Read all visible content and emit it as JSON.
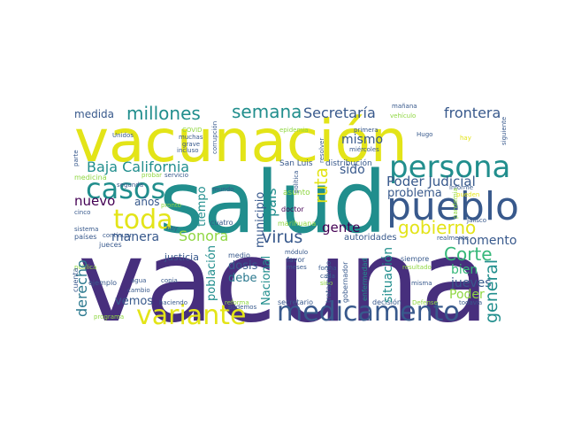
{
  "colors": {
    "navy": "#472f7d",
    "teal": "#218e8d",
    "blue": "#38598c",
    "green": "#35b779",
    "yellow": "#e3e418",
    "lime": "#90d743",
    "sea": "#2a788e",
    "dark": "#440154"
  },
  "words": [
    {
      "text": "vacuna",
      "color": "navy"
    },
    {
      "text": "vacunación",
      "color": "yellow"
    },
    {
      "text": "salud",
      "color": "teal"
    },
    {
      "text": "persona",
      "color": "teal"
    },
    {
      "text": "pueblo",
      "color": "blue"
    },
    {
      "text": "medicamento",
      "color": "blue"
    },
    {
      "text": "variante",
      "color": "yellow"
    },
    {
      "text": "casos",
      "color": "teal"
    },
    {
      "text": "toda",
      "color": "yellow"
    },
    {
      "text": "millones",
      "color": "teal"
    },
    {
      "text": "semana",
      "color": "teal"
    },
    {
      "text": "Secretaría",
      "color": "blue"
    },
    {
      "text": "frontera",
      "color": "blue"
    },
    {
      "text": "medida",
      "color": "blue"
    },
    {
      "text": "Baja California",
      "color": "teal"
    },
    {
      "text": "gobierno",
      "color": "yellow"
    },
    {
      "text": "Corte",
      "color": "green"
    },
    {
      "text": "Poder Judicial",
      "color": "blue"
    },
    {
      "text": "virus",
      "color": "blue"
    },
    {
      "text": "Sonora",
      "color": "lime"
    },
    {
      "text": "nuevo",
      "color": "dark"
    },
    {
      "text": "años",
      "color": "blue"
    },
    {
      "text": "manera",
      "color": "blue"
    },
    {
      "text": "derecho",
      "color": "sea"
    },
    {
      "text": "gente",
      "color": "dark"
    },
    {
      "text": "general",
      "color": "teal"
    },
    {
      "text": "mismo",
      "color": "blue"
    },
    {
      "text": "sido",
      "color": "blue"
    },
    {
      "text": "problema",
      "color": "blue"
    },
    {
      "text": "momento",
      "color": "blue"
    },
    {
      "text": "jueves",
      "color": "blue"
    },
    {
      "text": "bien",
      "color": "green"
    },
    {
      "text": "Poder",
      "color": "lime"
    },
    {
      "text": "dosis",
      "color": "blue"
    },
    {
      "text": "debe",
      "color": "sea"
    },
    {
      "text": "vemos",
      "color": "blue"
    },
    {
      "text": "ruta",
      "color": "yellow"
    },
    {
      "text": "país",
      "color": "teal"
    },
    {
      "text": "municipio",
      "color": "blue"
    },
    {
      "text": "tiempo",
      "color": "teal"
    },
    {
      "text": "población",
      "color": "teal"
    },
    {
      "text": "Nacional",
      "color": "teal"
    },
    {
      "text": "situación",
      "color": "teal"
    },
    {
      "text": "justicia",
      "color": "blue"
    },
    {
      "text": "autoridades",
      "color": "blue"
    },
    {
      "text": "enfermedad",
      "color": "teal"
    },
    {
      "text": "distribución",
      "color": "blue"
    },
    {
      "text": "San Luis",
      "color": "blue"
    },
    {
      "text": "asunto",
      "color": "lime"
    },
    {
      "text": "marihuana",
      "color": "lime"
    },
    {
      "text": "doctor",
      "color": "dark"
    },
    {
      "text": "cuatro",
      "color": "blue"
    },
    {
      "text": "medio",
      "color": "blue"
    },
    {
      "text": "favor",
      "color": "blue"
    },
    {
      "text": "meses",
      "color": "blue"
    },
    {
      "text": "módulo",
      "color": "blue"
    },
    {
      "text": "forma",
      "color": "blue"
    },
    {
      "text": "cada",
      "color": "blue"
    },
    {
      "text": "secretario",
      "color": "blue"
    },
    {
      "text": "decisión",
      "color": "blue"
    },
    {
      "text": "misma",
      "color": "blue"
    },
    {
      "text": "todavía",
      "color": "blue"
    },
    {
      "text": "siempre",
      "color": "blue"
    },
    {
      "text": "realmente",
      "color": "blue"
    },
    {
      "text": "resultado",
      "color": "lime"
    },
    {
      "text": "Defense",
      "color": "lime"
    },
    {
      "text": "tratamiento",
      "color": "blue"
    },
    {
      "text": "gobernador",
      "color": "blue"
    },
    {
      "text": "mundo",
      "color": "blue"
    },
    {
      "text": "pronto",
      "color": "lime"
    },
    {
      "text": "servicio",
      "color": "blue"
    },
    {
      "text": "probar",
      "color": "lime"
    },
    {
      "text": "medicina",
      "color": "lime"
    },
    {
      "text": "cinco",
      "color": "blue"
    },
    {
      "text": "sistema",
      "color": "blue"
    },
    {
      "text": "países",
      "color": "blue"
    },
    {
      "text": "cuenta",
      "color": "blue"
    },
    {
      "text": "ejemplo",
      "color": "blue"
    },
    {
      "text": "jueces",
      "color": "blue"
    },
    {
      "text": "segunda",
      "color": "blue"
    },
    {
      "text": "continuar",
      "color": "blue"
    },
    {
      "text": "hoy",
      "color": "blue"
    },
    {
      "text": "pública",
      "color": "lime"
    },
    {
      "text": "agua",
      "color": "blue"
    },
    {
      "text": "copia",
      "color": "blue"
    },
    {
      "text": "cambio",
      "color": "blue"
    },
    {
      "text": "haciendo",
      "color": "blue"
    },
    {
      "text": "programa",
      "color": "lime"
    },
    {
      "text": "sino",
      "color": "lime"
    },
    {
      "text": "podemos",
      "color": "blue"
    },
    {
      "text": "reforma",
      "color": "lime"
    },
    {
      "text": "política",
      "color": "blue"
    },
    {
      "text": "Unidos",
      "color": "blue"
    },
    {
      "text": "COVID",
      "color": "lime"
    },
    {
      "text": "muchas",
      "color": "blue"
    },
    {
      "text": "grave",
      "color": "blue"
    },
    {
      "text": "incluso",
      "color": "blue"
    },
    {
      "text": "corrupción",
      "color": "blue"
    },
    {
      "text": "epidemia",
      "color": "lime"
    },
    {
      "text": "resolver",
      "color": "blue"
    },
    {
      "text": "primera",
      "color": "blue"
    },
    {
      "text": "miércoles",
      "color": "blue"
    },
    {
      "text": "mañana",
      "color": "blue"
    },
    {
      "text": "vehículo",
      "color": "lime"
    },
    {
      "text": "Hugo",
      "color": "blue"
    },
    {
      "text": "hay",
      "color": "yellow"
    },
    {
      "text": "siguiente",
      "color": "blue"
    },
    {
      "text": "informe",
      "color": "blue"
    },
    {
      "text": "pueden",
      "color": "yellow"
    },
    {
      "text": "Jalisco",
      "color": "blue"
    },
    {
      "text": "pandemia",
      "color": "lime"
    },
    {
      "text": "parte",
      "color": "blue"
    }
  ]
}
